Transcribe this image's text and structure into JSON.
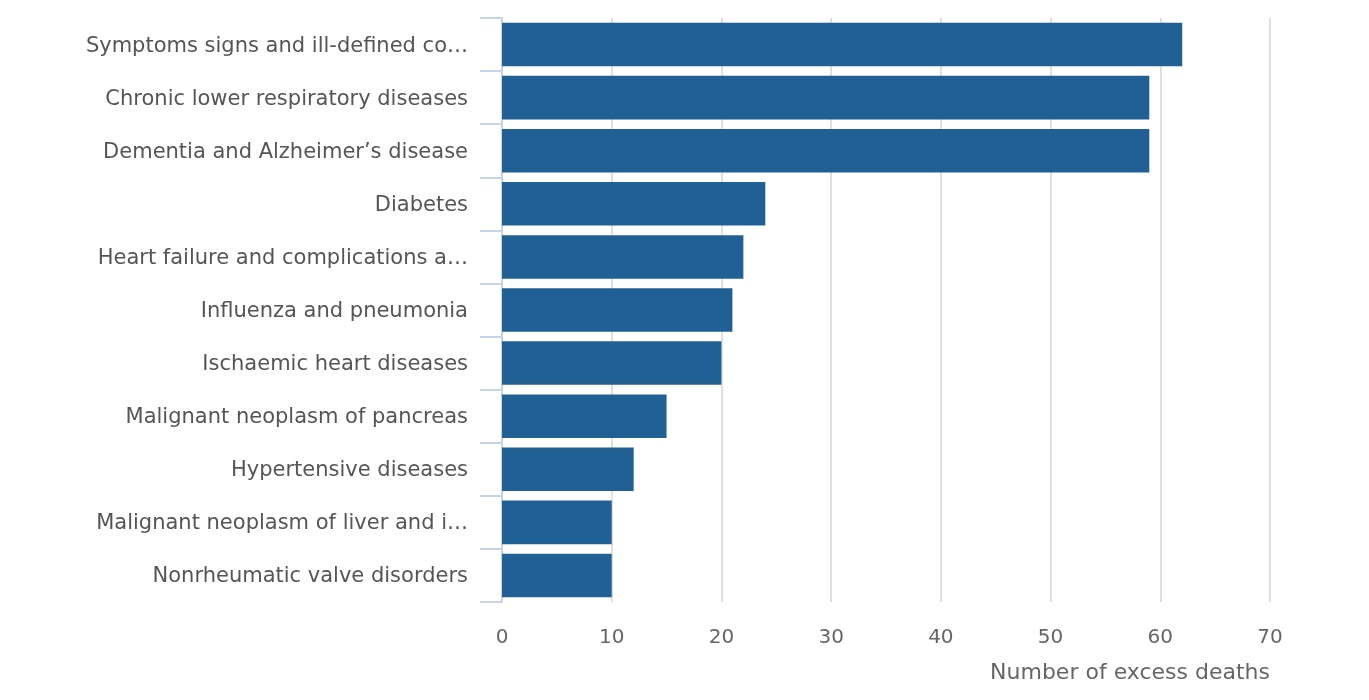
{
  "chart_data": {
    "type": "bar",
    "orientation": "horizontal",
    "xlabel": "Number of excess deaths",
    "categories": [
      "Symptoms signs and ill-defined co…",
      "Chronic lower respiratory diseases",
      "Dementia and Alzheimer’s disease",
      "Diabetes",
      "Heart failure and complications a…",
      "Influenza and pneumonia",
      "Ischaemic heart diseases",
      "Malignant neoplasm of pancreas",
      "Hypertensive diseases",
      "Malignant neoplasm of liver and i…",
      "Nonrheumatic valve disorders"
    ],
    "values": [
      62,
      59,
      59,
      24,
      22,
      21,
      20,
      15,
      12,
      10,
      10
    ],
    "color": "#206095",
    "xlim": [
      0,
      70
    ],
    "xticks": [
      0,
      10,
      20,
      30,
      40,
      50,
      60,
      70
    ],
    "grid": "x"
  }
}
